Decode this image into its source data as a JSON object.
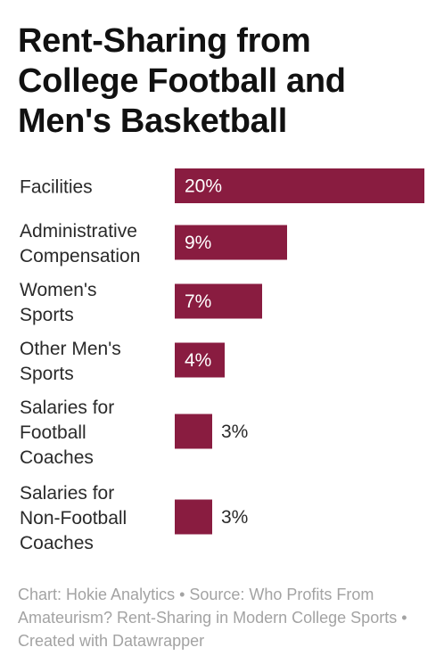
{
  "chart_data": {
    "type": "bar",
    "orientation": "horizontal",
    "title": "Rent-Sharing from College Football and Men's Basketball",
    "categories": [
      [
        "Facilities"
      ],
      [
        "Administrative",
        "Compensation"
      ],
      [
        "Women's",
        "Sports"
      ],
      [
        "Other Men's",
        "Sports"
      ],
      [
        "Salaries for",
        "Football",
        "Coaches"
      ],
      [
        "Salaries for",
        "Non-Football",
        "Coaches"
      ]
    ],
    "values": [
      20,
      9,
      7,
      4,
      3,
      3
    ],
    "value_labels": [
      "20%",
      "9%",
      "7%",
      "4%",
      "3%",
      "3%"
    ],
    "unit": "%",
    "xlim": [
      0,
      20
    ],
    "grid": false,
    "legend": "none",
    "colors": {
      "bar": "#891c40",
      "label_inside": "#ffffff",
      "label_outside": "#2a2a2a"
    }
  },
  "footer": {
    "credit": "Chart: Hokie Analytics • Source: Who Profits From Amateurism? Rent-Sharing in Modern College Sports • Created with Datawrapper"
  }
}
